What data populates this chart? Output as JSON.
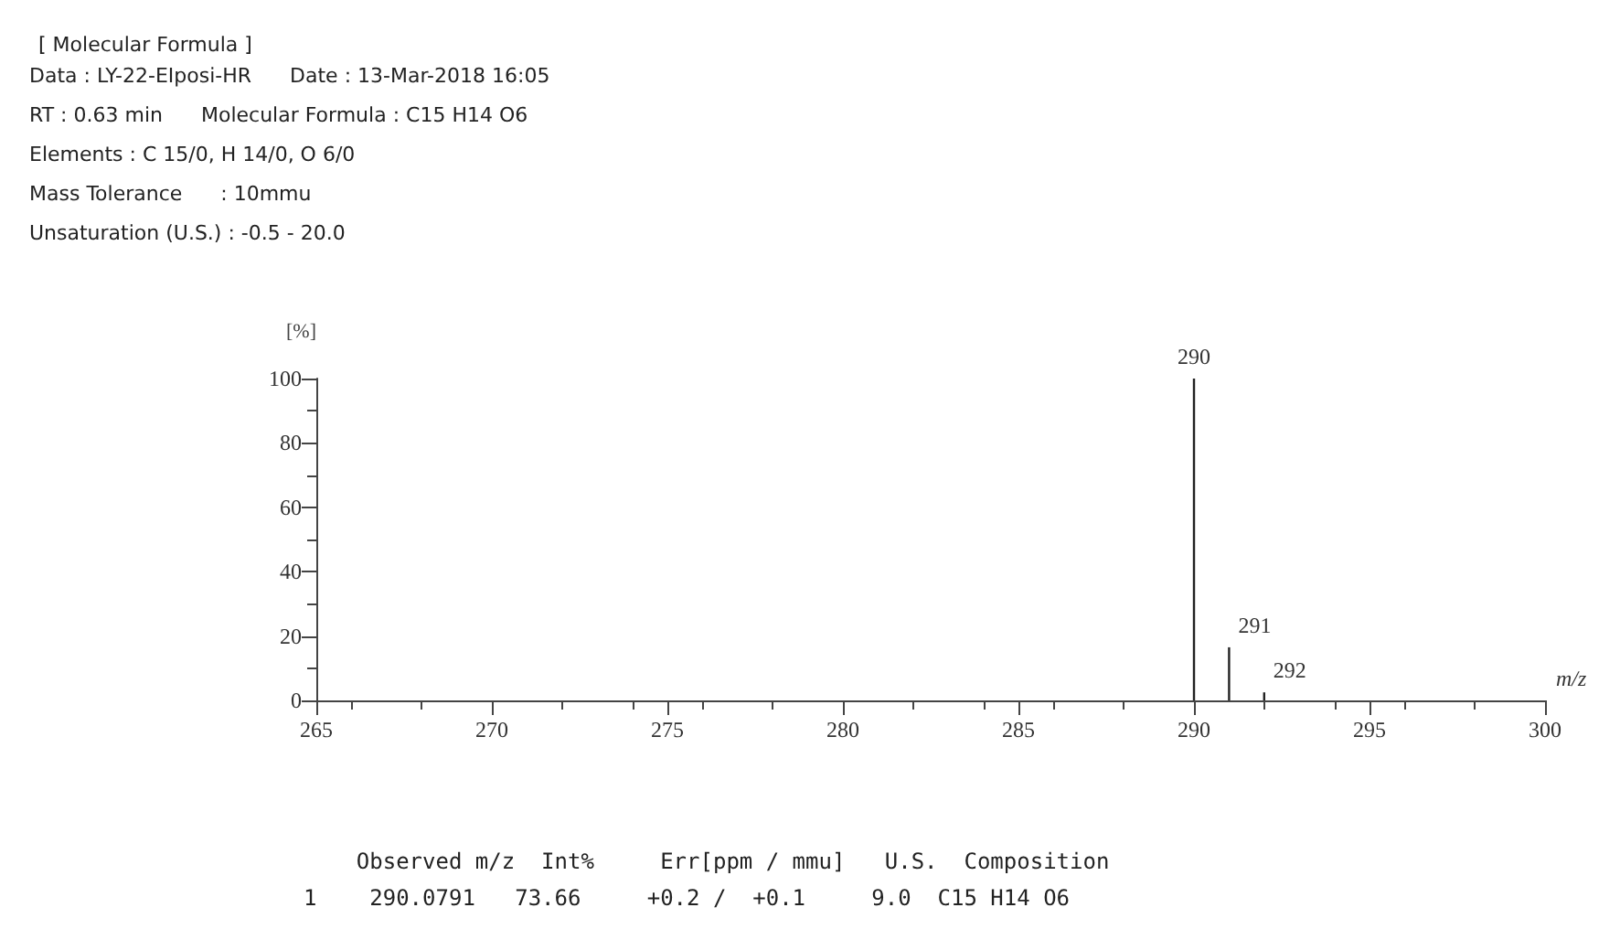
{
  "chart_data": {
    "type": "bar",
    "title": "[ Molecular Formula ]",
    "x": [
      290,
      291,
      292
    ],
    "values": [
      100,
      16.5,
      2.5
    ],
    "color": "#222222",
    "xlabel": "m/z",
    "ylabel": "[%]",
    "xlim": [
      265,
      300
    ],
    "xticks": [
      265,
      270,
      275,
      280,
      285,
      290,
      295,
      300
    ],
    "ylim": [
      0,
      100
    ],
    "yticks": [
      0,
      20,
      40,
      60,
      80,
      100
    ],
    "grid": false,
    "annotations": [
      "Data : LY-22-EIposi-HR      Date : 13-Mar-2018 16:05",
      "RT : 0.63 min      Molecular Formula : C15 H14 O6",
      "Elements : C 15/0, H 14/0, O 6/0",
      "Mass Tolerance      : 10mmu",
      "Unsaturation (U.S.) : -0.5 - 20.0",
      {
        "text": "290",
        "x": 290,
        "y": 100
      },
      {
        "text": "291",
        "x": 291,
        "y": 16.5
      },
      {
        "text": "292",
        "x": 292,
        "y": 2.5
      },
      "    Observed m/z  Int%     Err[ppm / mmu]   U.S.  Composition",
      "1    290.0791   73.66     +0.2 /  +0.1     9.0  C15 H14 O6"
    ]
  }
}
